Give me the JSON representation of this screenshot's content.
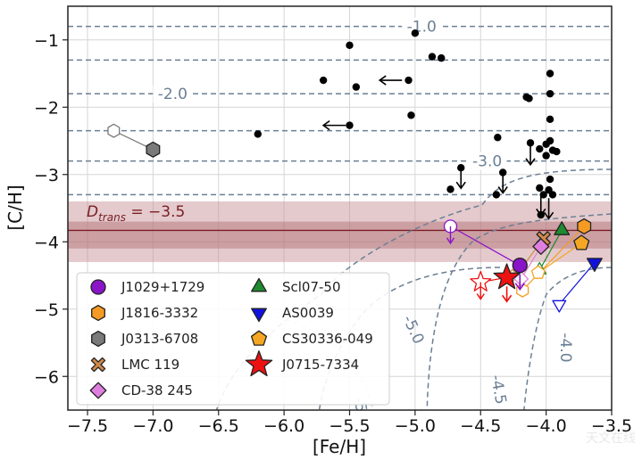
{
  "chart_data": {
    "type": "scatter",
    "xlabel": "[Fe/H]",
    "ylabel": "[C/H]",
    "xlim": [
      -7.65,
      -3.5
    ],
    "ylim": [
      -6.5,
      -0.5
    ],
    "x_ticks": [
      -7.5,
      -7.0,
      -6.5,
      -6.0,
      -5.5,
      -5.0,
      -4.5,
      -4.0,
      -3.5
    ],
    "x_tick_labels": [
      "−7.5",
      "−7.0",
      "−6.5",
      "−6.0",
      "−5.5",
      "−5.0",
      "−4.5",
      "−4.0",
      "−3.5"
    ],
    "y_ticks": [
      -1,
      -2,
      -3,
      -4,
      -5,
      -6
    ],
    "y_tick_labels": [
      "−1",
      "−2",
      "−3",
      "−4",
      "−5",
      "−6"
    ],
    "grid": true,
    "legend": "bottom-left",
    "dtrans": {
      "value": -3.5,
      "label": "D_trans = −3.5",
      "band": [
        -4.3,
        -3.4
      ],
      "inner_band": [
        -4.1,
        -3.7
      ],
      "line": -3.83
    },
    "dtrans_label_parts": {
      "D": "D",
      "sub": "trans",
      "rest": " = −3.5"
    },
    "horizontal_contours": [
      {
        "label": "-1.0",
        "y": [
          -0.8,
          -1.3
        ]
      },
      {
        "label": "-2.0",
        "y": [
          -1.8,
          -2.35
        ]
      },
      {
        "label": "-3.0",
        "y": [
          -2.8,
          -3.3
        ]
      }
    ],
    "curved_contour_labels": [
      "-4.0",
      "-4.5",
      "-5.0",
      "-5"
    ],
    "field_stars": [
      {
        "x": -5.0,
        "y": -0.9
      },
      {
        "x": -5.5,
        "y": -1.08
      },
      {
        "x": -4.87,
        "y": -1.25
      },
      {
        "x": -4.8,
        "y": -1.27
      },
      {
        "x": -5.7,
        "y": -1.6
      },
      {
        "x": -5.45,
        "y": -1.7
      },
      {
        "x": -5.05,
        "y": -1.6
      },
      {
        "x": -5.03,
        "y": -2.12
      },
      {
        "x": -5.5,
        "y": -2.27
      },
      {
        "x": -6.2,
        "y": -2.4
      },
      {
        "x": -4.15,
        "y": -1.85
      },
      {
        "x": -4.13,
        "y": -1.87
      },
      {
        "x": -3.97,
        "y": -1.5
      },
      {
        "x": -3.97,
        "y": -1.8
      },
      {
        "x": -3.97,
        "y": -2.18
      },
      {
        "x": -3.97,
        "y": -2.5
      },
      {
        "x": -4.0,
        "y": -2.55
      },
      {
        "x": -4.37,
        "y": -2.45
      },
      {
        "x": -4.12,
        "y": -2.53
      },
      {
        "x": -4.05,
        "y": -2.62
      },
      {
        "x": -3.95,
        "y": -2.64
      },
      {
        "x": -3.92,
        "y": -2.66
      },
      {
        "x": -4.0,
        "y": -2.72
      },
      {
        "x": -4.65,
        "y": -2.9
      },
      {
        "x": -4.33,
        "y": -2.97
      },
      {
        "x": -4.73,
        "y": -3.22
      },
      {
        "x": -4.38,
        "y": -3.3
      },
      {
        "x": -4.05,
        "y": -3.2
      },
      {
        "x": -4.02,
        "y": -3.3
      },
      {
        "x": -3.98,
        "y": -3.23
      },
      {
        "x": -3.97,
        "y": -3.07
      },
      {
        "x": -4.04,
        "y": -3.6
      },
      {
        "x": -3.95,
        "y": -3.3
      }
    ],
    "down_arrows": [
      {
        "x": -4.12,
        "y": -2.55
      },
      {
        "x": -4.65,
        "y": -2.9
      },
      {
        "x": -4.33,
        "y": -2.97
      },
      {
        "x": -4.04,
        "y": -3.3
      },
      {
        "x": -3.98,
        "y": -3.35
      }
    ],
    "left_arrows": [
      {
        "x": -5.1,
        "y": -1.6
      },
      {
        "x": -5.53,
        "y": -2.27
      }
    ],
    "stars": [
      {
        "name": "J1029+1729",
        "marker": "circle",
        "color": "#8a14c8",
        "x": -4.2,
        "y": -4.35,
        "open": {
          "x": -4.73,
          "y": -3.77
        },
        "upper_limit": true
      },
      {
        "name": "J1816-3332",
        "marker": "hexagon",
        "color": "#f59b23",
        "x": -3.71,
        "y": -3.77,
        "open": {
          "x": -4.18,
          "y": -4.72
        },
        "upper_limit": false
      },
      {
        "name": "J0313-6708",
        "marker": "hexagon",
        "color": "#7a7a7a",
        "x": -7.0,
        "y": -2.63,
        "open": {
          "x": -7.3,
          "y": -2.35
        },
        "upper_limit": false
      },
      {
        "name": "LMC 119",
        "marker": "x",
        "color": "#d08a48",
        "x": -4.02,
        "y": -3.95,
        "open": {
          "x": -4.23,
          "y": -4.5
        },
        "upper_limit": false
      },
      {
        "name": "CD-38 245",
        "marker": "diamond",
        "color": "#de7fdf",
        "x": -4.04,
        "y": -4.07,
        "open": {
          "x": -4.19,
          "y": -4.55
        },
        "upper_limit": false
      },
      {
        "name": "Scl07-50",
        "marker": "triangle-up",
        "color": "#1f8a2f",
        "x": -3.88,
        "y": -3.83,
        "open": {
          "x": -4.05,
          "y": -4.42
        },
        "upper_limit": false
      },
      {
        "name": "AS0039",
        "marker": "triangle-down",
        "color": "#1111dd",
        "x": -3.63,
        "y": -4.31,
        "open": {
          "x": -3.9,
          "y": -4.93
        },
        "upper_limit": false
      },
      {
        "name": "CS30336-049",
        "marker": "pentagon",
        "color": "#f5a623",
        "x": -3.73,
        "y": -4.02,
        "open": {
          "x": -4.06,
          "y": -4.46
        },
        "upper_limit": false
      },
      {
        "name": "J0715-7334",
        "marker": "star",
        "color": "#ee1111",
        "x": -4.3,
        "y": -4.53,
        "open": {
          "x": -4.5,
          "y": -4.6
        },
        "upper_limit": true
      }
    ],
    "watermark": "天文在线"
  }
}
